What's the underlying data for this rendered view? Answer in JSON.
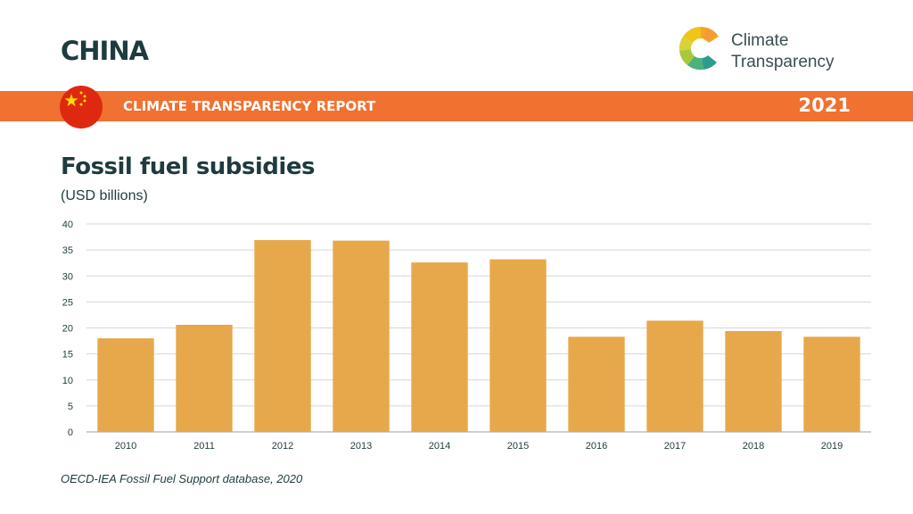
{
  "header": {
    "country": "CHINA",
    "report_title": "CLIMATE TRANSPARENCY REPORT",
    "year": "2021"
  },
  "logo": {
    "line1": "Climate",
    "line2": "Transparency"
  },
  "colors": {
    "banner": "#f07130",
    "bar": "#e6a84b",
    "text": "#1e3b3e",
    "flag": "#de2910",
    "flag_star": "#ffde00"
  },
  "chart_data": {
    "type": "bar",
    "title": "Fossil fuel subsidies",
    "subtitle": "(USD billions)",
    "xlabel": "",
    "ylabel": "",
    "categories": [
      "2010",
      "2011",
      "2012",
      "2013",
      "2014",
      "2015",
      "2016",
      "2017",
      "2018",
      "2019"
    ],
    "values": [
      18,
      20.6,
      36.9,
      36.8,
      32.6,
      33.2,
      18.3,
      21.4,
      19.4,
      18.3
    ],
    "ylim": [
      0,
      40
    ],
    "yticks": [
      0,
      5,
      10,
      15,
      20,
      25,
      30,
      35,
      40
    ],
    "grid": true,
    "legend": "none"
  },
  "source": "OECD-IEA Fossil Fuel Support database, 2020"
}
